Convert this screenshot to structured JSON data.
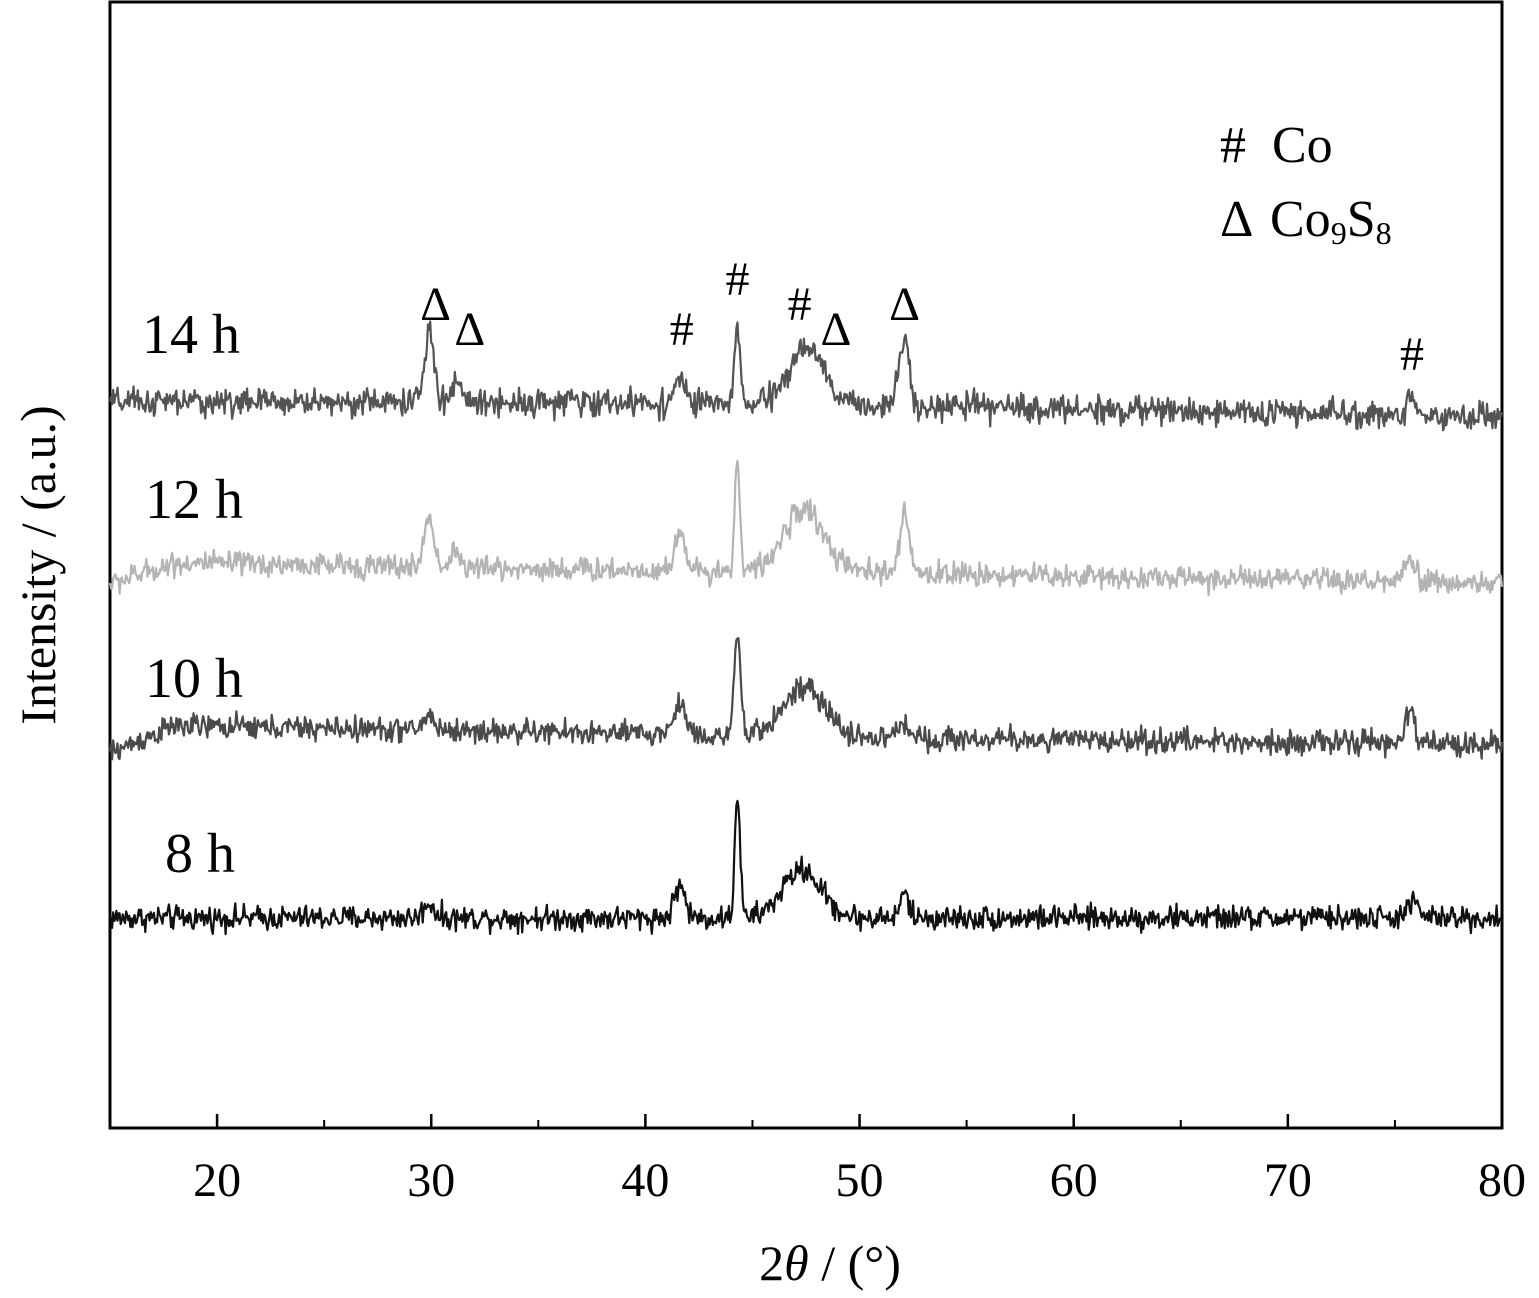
{
  "chart_data": {
    "type": "line",
    "xlabel_prefix": "2",
    "xlabel_symbol": "θ",
    "xlabel_suffix": " / (°)",
    "ylabel": "Intensity / (a.u.)",
    "xlim": [
      15,
      80
    ],
    "x_ticks": [
      20,
      30,
      40,
      50,
      60,
      70,
      80
    ],
    "x_minor_ticks": [
      25,
      35,
      45,
      55,
      65,
      75
    ],
    "y_ticks_shown": false,
    "legend": {
      "placement": "top-right",
      "entries": [
        {
          "marker": "#",
          "text": "Co",
          "sub": ""
        },
        {
          "marker": "Δ",
          "parts": [
            [
              "Co",
              ""
            ],
            [
              "9",
              "sub"
            ],
            [
              "S",
              ""
            ],
            [
              "8",
              "sub"
            ]
          ]
        }
      ]
    },
    "series": [
      {
        "name": "8 h",
        "color": "#111111",
        "baseline": [
          [
            15,
            0.0
          ],
          [
            35,
            0.0
          ],
          [
            50,
            0.0
          ],
          [
            80,
            0.0
          ]
        ],
        "noise": 0.4,
        "peaks": [
          [
            29.9,
            0.5,
            0.25
          ],
          [
            41.6,
            1.1,
            0.25
          ],
          [
            44.3,
            4.2,
            0.12
          ],
          [
            47.3,
            1.6,
            0.9
          ],
          [
            52.1,
            0.8,
            0.2
          ],
          [
            75.8,
            0.5,
            0.3
          ]
        ]
      },
      {
        "name": "10 h",
        "color": "#4a4a4a",
        "baseline": [
          [
            15,
            -0.6
          ],
          [
            18,
            0.3
          ],
          [
            35,
            0.1
          ],
          [
            50,
            -0.1
          ],
          [
            80,
            -0.3
          ]
        ],
        "noise": 0.4,
        "peaks": [
          [
            29.9,
            0.5,
            0.25
          ],
          [
            41.6,
            1.0,
            0.3
          ],
          [
            44.3,
            3.4,
            0.14
          ],
          [
            47.4,
            1.6,
            1.0
          ],
          [
            52.1,
            0.5,
            0.3
          ],
          [
            75.7,
            1.1,
            0.2
          ]
        ]
      },
      {
        "name": "12 h",
        "color": "#b4b4b4",
        "baseline": [
          [
            15,
            -0.4
          ],
          [
            18,
            0.3
          ],
          [
            35,
            0.1
          ],
          [
            50,
            0.0
          ],
          [
            80,
            -0.4
          ]
        ],
        "noise": 0.4,
        "peaks": [
          [
            29.9,
            1.7,
            0.22
          ],
          [
            31.1,
            0.6,
            0.2
          ],
          [
            41.6,
            1.4,
            0.22
          ],
          [
            44.3,
            3.7,
            0.12
          ],
          [
            47.4,
            2.1,
            0.9
          ],
          [
            52.1,
            1.9,
            0.22
          ],
          [
            75.7,
            0.7,
            0.25
          ]
        ]
      },
      {
        "name": "14 h",
        "color": "#545454",
        "baseline": [
          [
            15,
            0.0
          ],
          [
            35,
            0.0
          ],
          [
            50,
            -0.1
          ],
          [
            80,
            -0.5
          ]
        ],
        "noise": 0.45,
        "peaks": [
          [
            29.9,
            2.3,
            0.22
          ],
          [
            31.2,
            0.8,
            0.2
          ],
          [
            41.6,
            0.9,
            0.22
          ],
          [
            44.3,
            2.6,
            0.12
          ],
          [
            47.5,
            1.9,
            0.8
          ],
          [
            52.1,
            2.2,
            0.25
          ],
          [
            75.8,
            0.5,
            0.25
          ]
        ]
      }
    ],
    "peak_markers": [
      {
        "x": 30.2,
        "symbol": "Δ",
        "series": "14 h",
        "level": 2
      },
      {
        "x": 31.8,
        "symbol": "Δ",
        "series": "14 h",
        "level": 1
      },
      {
        "x": 41.7,
        "symbol": "#",
        "series": "14 h",
        "level": 1
      },
      {
        "x": 44.3,
        "symbol": "#",
        "series": "14 h",
        "level": 3
      },
      {
        "x": 47.2,
        "symbol": "#",
        "series": "14 h",
        "level": 2
      },
      {
        "x": 48.9,
        "symbol": "Δ",
        "series": "14 h",
        "level": 1
      },
      {
        "x": 52.1,
        "symbol": "Δ",
        "series": "14 h",
        "level": 2
      },
      {
        "x": 75.8,
        "symbol": "#",
        "series": "14 h",
        "level": 0
      }
    ]
  }
}
